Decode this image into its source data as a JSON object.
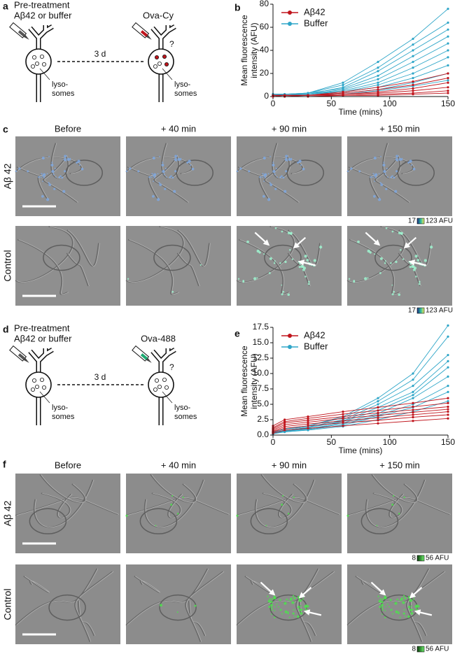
{
  "diagrams": [
    {
      "label": "a",
      "pretreatment": "Pre-treatment",
      "condition": "Aβ42 or buffer",
      "interval": "3 d",
      "probe": "Ova-Cy",
      "question": "?",
      "lysosomes_before": [
        "lyso-",
        "somes"
      ],
      "lysosomes_after": [
        "lyso-",
        "somes"
      ]
    },
    {
      "label": "d",
      "pretreatment": "Pre-treatment",
      "condition": "Aβ42 or buffer",
      "interval": "3 d",
      "probe": "Ova-488",
      "question": "?",
      "lysosomes_before": [
        "lyso-",
        "somes"
      ],
      "lysosomes_after": [
        "lyso-",
        "somes"
      ]
    }
  ],
  "chart_data": [
    {
      "type": "line",
      "panel": "b",
      "xlabel": "Time (mins)",
      "ylabel": [
        "Mean fluorescence",
        "intensity (AFU)"
      ],
      "x": [
        0,
        10,
        30,
        60,
        90,
        120,
        150
      ],
      "xlim": [
        0,
        150
      ],
      "xticks": [
        0,
        50,
        100,
        150
      ],
      "ylim": [
        0,
        80
      ],
      "yticks": [
        0,
        20,
        40,
        60,
        80
      ],
      "legend": "upper left",
      "series": [
        {
          "name": "Aβ42",
          "color": "#c0141c",
          "values": [
            [
              1,
              1,
              1,
              4,
              8,
              13,
              20
            ],
            [
              1,
              1,
              1,
              3,
              6,
              10,
              16
            ],
            [
              1,
              1,
              1,
              2,
              4,
              7,
              12
            ],
            [
              0,
              1,
              1,
              2,
              3,
              5,
              8
            ],
            [
              0,
              0,
              1,
              1,
              2,
              3,
              5
            ],
            [
              0,
              0,
              0,
              1,
              1,
              2,
              3
            ]
          ]
        },
        {
          "name": "Buffer",
          "color": "#2fa6c8",
          "values": [
            [
              2,
              2,
              3,
              12,
              30,
              50,
              76
            ],
            [
              2,
              2,
              3,
              10,
              25,
              45,
              64
            ],
            [
              1,
              2,
              2,
              8,
              22,
              40,
              58
            ],
            [
              2,
              2,
              3,
              7,
              18,
              35,
              52
            ],
            [
              1,
              1,
              2,
              6,
              15,
              30,
              46
            ],
            [
              2,
              2,
              2,
              5,
              12,
              25,
              40
            ],
            [
              1,
              1,
              2,
              4,
              10,
              20,
              34
            ],
            [
              1,
              1,
              2,
              4,
              8,
              16,
              27
            ],
            [
              1,
              1,
              1,
              3,
              6,
              12,
              20
            ],
            [
              1,
              1,
              1,
              2,
              5,
              9,
              14
            ]
          ]
        }
      ]
    },
    {
      "type": "line",
      "panel": "e",
      "xlabel": "Time (mins)",
      "ylabel": [
        "Mean fluorescence",
        "intensity (AFU)"
      ],
      "x": [
        0,
        10,
        30,
        60,
        90,
        120,
        150
      ],
      "xlim": [
        0,
        150
      ],
      "xticks": [
        0,
        50,
        100,
        150
      ],
      "ylim": [
        0,
        17.5
      ],
      "yticks": [
        {
          "value": 0,
          "label": "0.0"
        },
        2.5,
        {
          "value": 5,
          "label": "5.0"
        },
        7.5,
        {
          "value": 10,
          "label": "10.0"
        },
        12.5,
        {
          "value": 15,
          "label": "15.0"
        },
        17.5
      ],
      "legend": "upper left",
      "series": [
        {
          "name": "Aβ42",
          "color": "#c0141c",
          "values": [
            [
              1.5,
              2.5,
              3,
              3.8,
              4.5,
              5.2,
              6
            ],
            [
              1.2,
              2.2,
              2.7,
              3.4,
              4,
              4.6,
              5.2
            ],
            [
              1,
              2,
              2.4,
              3,
              3.6,
              4.1,
              4.6
            ],
            [
              0.8,
              1.7,
              2.1,
              2.7,
              3.2,
              3.7,
              4.2
            ],
            [
              0.6,
              1.4,
              1.8,
              2.3,
              2.8,
              3.3,
              3.8
            ],
            [
              0.5,
              1.1,
              1.5,
              2,
              2.4,
              2.9,
              3.3
            ],
            [
              0.3,
              0.8,
              1.1,
              1.5,
              1.9,
              2.3,
              2.7
            ]
          ]
        },
        {
          "name": "Buffer",
          "color": "#2fa6c8",
          "values": [
            [
              0.5,
              1,
              1.5,
              3,
              6,
              10,
              17.8
            ],
            [
              0.5,
              1,
              1.5,
              2.8,
              5.5,
              9,
              16
            ],
            [
              0.5,
              1,
              1.3,
              2.5,
              5,
              8,
              13
            ],
            [
              0.4,
              0.8,
              1.2,
              2.3,
              4.5,
              7,
              12
            ],
            [
              0.4,
              0.8,
              1.2,
              2.2,
              4,
              6.5,
              11
            ],
            [
              0.3,
              0.7,
              1,
              2,
              3.5,
              6,
              9.5
            ],
            [
              0.3,
              0.6,
              1,
              1.8,
              3.2,
              5,
              8
            ],
            [
              0.3,
              0.6,
              0.9,
              1.6,
              3,
              4.5,
              7
            ],
            [
              0.2,
              0.5,
              0.8,
              1.4,
              2.5,
              3.8,
              5.5
            ]
          ]
        }
      ]
    }
  ],
  "image_panels": [
    {
      "label": "c",
      "columns": [
        "Before",
        "+ 40 min",
        "+ 90 min",
        "+ 150 min"
      ],
      "rows": [
        {
          "label": "Aβ 42",
          "scale_min": "17",
          "scale_max": "123 AFU"
        },
        {
          "label": "Control",
          "scale_min": "17",
          "scale_max": "123 AFU"
        }
      ]
    },
    {
      "label": "f",
      "columns": [
        "Before",
        "+ 40 min",
        "+ 90 min",
        "+ 150 min"
      ],
      "rows": [
        {
          "label": "Aβ 42",
          "scale_min": "8",
          "scale_max": "56 AFU"
        },
        {
          "label": "Control",
          "scale_min": "8",
          "scale_max": "56 AFU"
        }
      ]
    }
  ]
}
